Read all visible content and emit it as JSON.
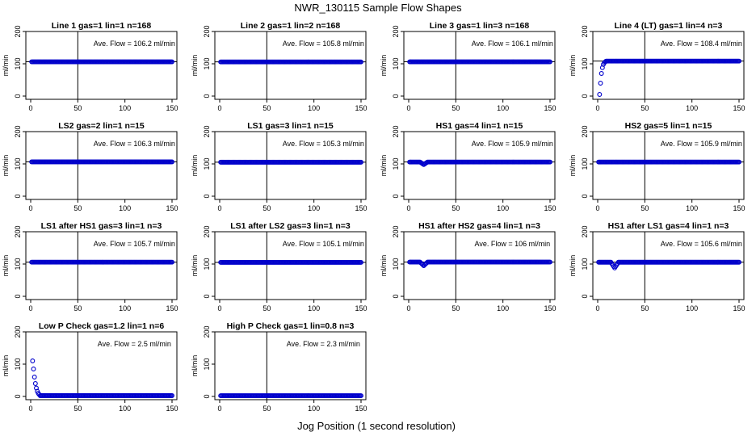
{
  "title": "NWR_130115  Sample Flow Shapes",
  "xlabel": "Jog Position (1 second resolution)",
  "ylabel": "ml/min",
  "marker_color": "#0000cc",
  "chart_data": [
    {
      "type": "scatter",
      "title": "Line 1 gas=1 lin=1 n=168",
      "annotation": "Ave. Flow =  106.2  ml/min",
      "ylabel": "ml/min",
      "xlim": [
        0,
        150
      ],
      "ylim": [
        -10,
        200
      ],
      "xticks": [
        0,
        50,
        100,
        150
      ],
      "yticks": [
        0,
        100,
        200
      ],
      "vline": 50,
      "hline": 106.2,
      "shape": "flat",
      "level": 106.2
    },
    {
      "type": "scatter",
      "title": "Line 2 gas=1 lin=2 n=168",
      "annotation": "Ave. Flow =  105.8  ml/min",
      "ylabel": "ml/min",
      "xlim": [
        0,
        150
      ],
      "ylim": [
        -10,
        200
      ],
      "xticks": [
        0,
        50,
        100,
        150
      ],
      "yticks": [
        0,
        100,
        200
      ],
      "vline": 50,
      "hline": 105.8,
      "shape": "flat",
      "level": 105.8
    },
    {
      "type": "scatter",
      "title": "Line 3 gas=1 lin=3 n=168",
      "annotation": "Ave. Flow =  106.1  ml/min",
      "ylabel": "ml/min",
      "xlim": [
        0,
        150
      ],
      "ylim": [
        -10,
        200
      ],
      "xticks": [
        0,
        50,
        100,
        150
      ],
      "yticks": [
        0,
        100,
        200
      ],
      "vline": 50,
      "hline": 106.1,
      "shape": "flat",
      "level": 106.1
    },
    {
      "type": "scatter",
      "title": "Line 4 (LT) gas=1 lin=4 n=3",
      "annotation": "Ave. Flow =  108.4  ml/min",
      "ylabel": "ml/min",
      "xlim": [
        0,
        150
      ],
      "ylim": [
        -10,
        200
      ],
      "xticks": [
        0,
        50,
        100,
        150
      ],
      "yticks": [
        0,
        100,
        200
      ],
      "vline": 50,
      "hline": 108.4,
      "shape": "rise",
      "level": 108.4
    },
    {
      "type": "scatter",
      "title": "LS2 gas=2 lin=1 n=15",
      "annotation": "Ave. Flow =  106.3  ml/min",
      "ylabel": "ml/min",
      "xlim": [
        0,
        150
      ],
      "ylim": [
        -10,
        200
      ],
      "xticks": [
        0,
        50,
        100,
        150
      ],
      "yticks": [
        0,
        100,
        200
      ],
      "vline": 50,
      "hline": 106.3,
      "shape": "flat",
      "level": 106.3
    },
    {
      "type": "scatter",
      "title": "LS1 gas=3 lin=1 n=15",
      "annotation": "Ave. Flow =  105.3  ml/min",
      "ylabel": "ml/min",
      "xlim": [
        0,
        150
      ],
      "ylim": [
        -10,
        200
      ],
      "xticks": [
        0,
        50,
        100,
        150
      ],
      "yticks": [
        0,
        100,
        200
      ],
      "vline": 50,
      "hline": 105.3,
      "shape": "flat",
      "level": 105.3
    },
    {
      "type": "scatter",
      "title": "HS1 gas=4 lin=1 n=15",
      "annotation": "Ave. Flow =  105.9  ml/min",
      "ylabel": "ml/min",
      "xlim": [
        0,
        150
      ],
      "ylim": [
        -10,
        200
      ],
      "xticks": [
        0,
        50,
        100,
        150
      ],
      "yticks": [
        0,
        100,
        200
      ],
      "vline": 50,
      "hline": 105.9,
      "shape": "dip",
      "level": 105.9,
      "dip_at": 16,
      "dip_min": 98
    },
    {
      "type": "scatter",
      "title": "HS2 gas=5 lin=1 n=15",
      "annotation": "Ave. Flow =  105.9  ml/min",
      "ylabel": "ml/min",
      "xlim": [
        0,
        150
      ],
      "ylim": [
        -10,
        200
      ],
      "xticks": [
        0,
        50,
        100,
        150
      ],
      "yticks": [
        0,
        100,
        200
      ],
      "vline": 50,
      "hline": 105.9,
      "shape": "flat",
      "level": 105.9
    },
    {
      "type": "scatter",
      "title": "LS1 after HS1 gas=3 lin=1 n=3",
      "annotation": "Ave. Flow =  105.7  ml/min",
      "ylabel": "ml/min",
      "xlim": [
        0,
        150
      ],
      "ylim": [
        -10,
        200
      ],
      "xticks": [
        0,
        50,
        100,
        150
      ],
      "yticks": [
        0,
        100,
        200
      ],
      "vline": 50,
      "hline": 105.7,
      "shape": "flat",
      "level": 105.7
    },
    {
      "type": "scatter",
      "title": "LS1 after LS2 gas=3 lin=1 n=3",
      "annotation": "Ave. Flow =  105.1  ml/min",
      "ylabel": "ml/min",
      "xlim": [
        0,
        150
      ],
      "ylim": [
        -10,
        200
      ],
      "xticks": [
        0,
        50,
        100,
        150
      ],
      "yticks": [
        0,
        100,
        200
      ],
      "vline": 50,
      "hline": 105.1,
      "shape": "flat",
      "level": 105.1
    },
    {
      "type": "scatter",
      "title": "HS1 after HS2 gas=4 lin=1 n=3",
      "annotation": "Ave. Flow =  106  ml/min",
      "ylabel": "ml/min",
      "xlim": [
        0,
        150
      ],
      "ylim": [
        -10,
        200
      ],
      "xticks": [
        0,
        50,
        100,
        150
      ],
      "yticks": [
        0,
        100,
        200
      ],
      "vline": 50,
      "hline": 106,
      "shape": "dip",
      "level": 106,
      "dip_at": 16,
      "dip_min": 95
    },
    {
      "type": "scatter",
      "title": "HS1 after LS1 gas=4 lin=1 n=3",
      "annotation": "Ave. Flow =  105.6  ml/min",
      "ylabel": "ml/min",
      "xlim": [
        0,
        150
      ],
      "ylim": [
        -10,
        200
      ],
      "xticks": [
        0,
        50,
        100,
        150
      ],
      "yticks": [
        0,
        100,
        200
      ],
      "vline": 50,
      "hline": 105.6,
      "shape": "dip",
      "level": 105.6,
      "dip_at": 18,
      "dip_min": 88
    },
    {
      "type": "scatter",
      "title": "Low P Check gas=1.2 lin=1 n=6",
      "annotation": "Ave. Flow =  2.5  ml/min",
      "ylabel": "ml/min",
      "xlim": [
        0,
        150
      ],
      "ylim": [
        -10,
        200
      ],
      "xticks": [
        0,
        50,
        100,
        150
      ],
      "yticks": [
        0,
        100,
        200
      ],
      "vline": 50,
      "shape": "decay",
      "level": 2.5,
      "decay_points": [
        [
          2,
          110
        ],
        [
          3,
          85
        ],
        [
          4,
          60
        ],
        [
          5,
          40
        ],
        [
          6,
          26
        ],
        [
          7,
          16
        ],
        [
          8,
          10
        ],
        [
          9,
          6
        ]
      ]
    },
    {
      "type": "scatter",
      "title": "High P Check gas=1 lin=0.8 n=3",
      "annotation": "Ave. Flow =  2.3  ml/min",
      "ylabel": "ml/min",
      "xlim": [
        0,
        150
      ],
      "ylim": [
        -10,
        200
      ],
      "xticks": [
        0,
        50,
        100,
        150
      ],
      "yticks": [
        0,
        100,
        200
      ],
      "vline": 50,
      "shape": "flat",
      "level": 2.3
    }
  ]
}
